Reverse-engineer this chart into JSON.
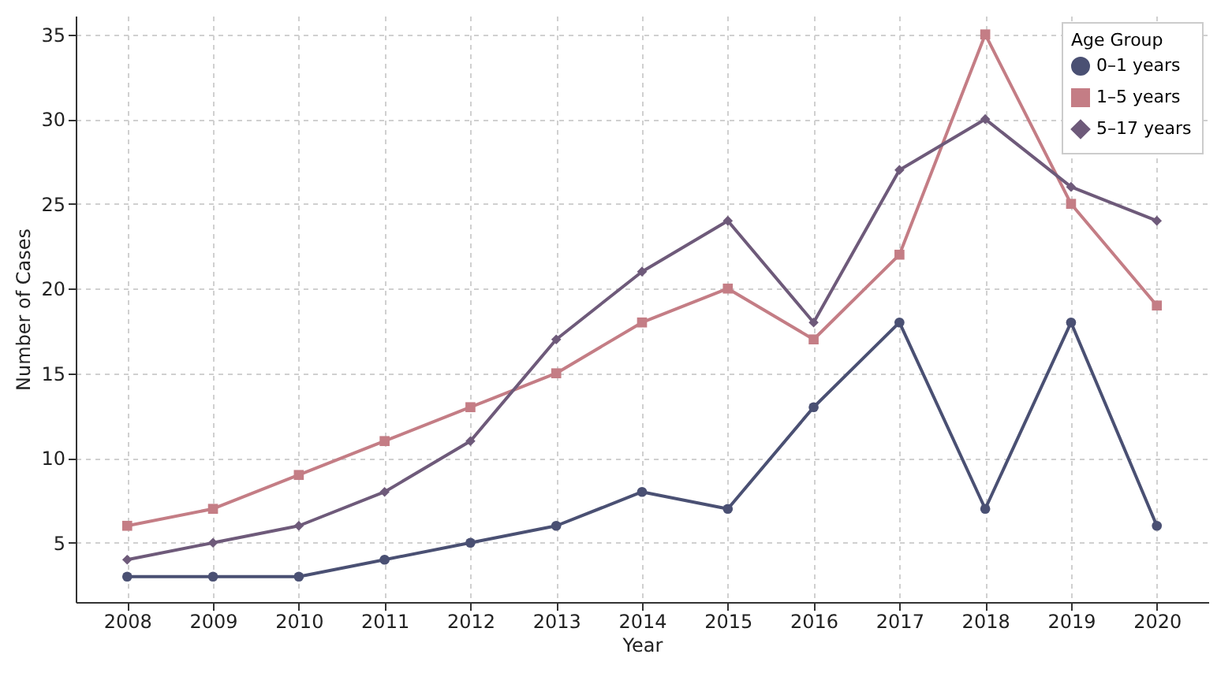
{
  "chart_data": {
    "type": "line",
    "xlabel": "Year",
    "ylabel": "Number of Cases",
    "legend_title": "Age Group",
    "x": [
      2008,
      2009,
      2010,
      2011,
      2012,
      2013,
      2014,
      2015,
      2016,
      2017,
      2018,
      2019,
      2020
    ],
    "series": [
      {
        "name": "0–1 years",
        "color": "#4a5073",
        "marker": "circle",
        "values": [
          3,
          3,
          3,
          4,
          5,
          6,
          8,
          7,
          13,
          18,
          7,
          18,
          6
        ]
      },
      {
        "name": "1–5 years",
        "color": "#c47d85",
        "marker": "square",
        "values": [
          6,
          7,
          9,
          11,
          13,
          15,
          18,
          20,
          17,
          22,
          35,
          25,
          19
        ]
      },
      {
        "name": "5–17 years",
        "color": "#6e5a7a",
        "marker": "diamond",
        "values": [
          4,
          5,
          6,
          8,
          11,
          17,
          21,
          24,
          18,
          27,
          30,
          26,
          24
        ]
      }
    ],
    "xlim": [
      2007.4,
      2020.6
    ],
    "xticks": [
      2008,
      2009,
      2010,
      2011,
      2012,
      2013,
      2014,
      2015,
      2016,
      2017,
      2018,
      2019,
      2020
    ],
    "ylim": [
      1.5,
      36.1
    ],
    "yticks": [
      5,
      10,
      15,
      20,
      25,
      30,
      35
    ],
    "grid": true,
    "legend": "top right",
    "line_style": "solid"
  }
}
